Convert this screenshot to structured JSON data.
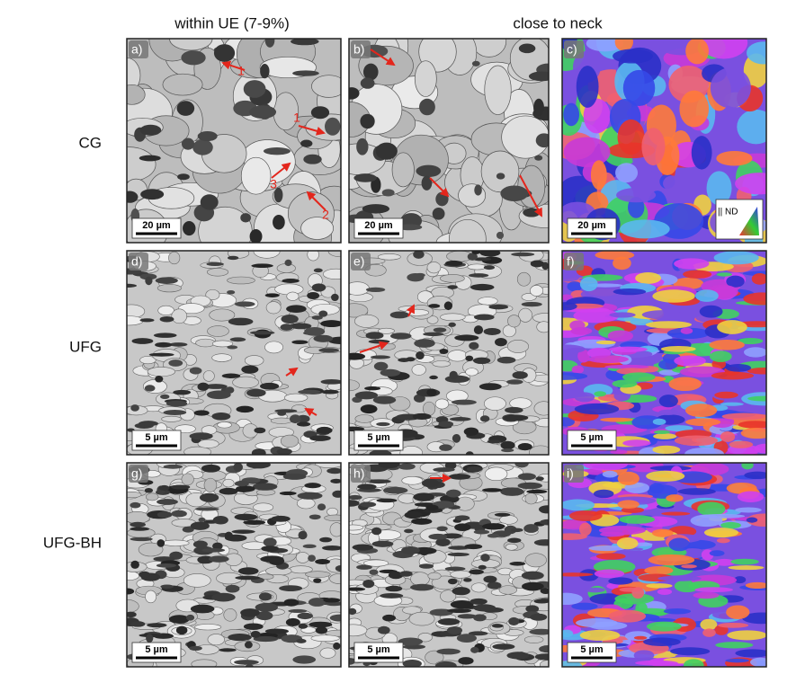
{
  "column_headers": [
    "within UE (7-9%)",
    "close to neck"
  ],
  "rows": [
    {
      "label": "CG",
      "panels": [
        {
          "letter": "a)",
          "scale_bar": "20 µm",
          "annotations": [
            "1",
            "1",
            "3",
            "2"
          ]
        },
        {
          "letter": "b)",
          "scale_bar": "20 µm"
        },
        {
          "letter": "c)",
          "scale_bar": "20 µm",
          "legend": "|| ND"
        }
      ]
    },
    {
      "label": "UFG",
      "panels": [
        {
          "letter": "d)",
          "scale_bar": "5 µm"
        },
        {
          "letter": "e)",
          "scale_bar": "5 µm"
        },
        {
          "letter": "f)",
          "scale_bar": "5 µm"
        }
      ]
    },
    {
      "label": "UFG-BH",
      "panels": [
        {
          "letter": "g)",
          "scale_bar": "5 µm"
        },
        {
          "letter": "h)",
          "scale_bar": "5 µm"
        },
        {
          "letter": "i)",
          "scale_bar": "5 µm"
        }
      ]
    }
  ]
}
